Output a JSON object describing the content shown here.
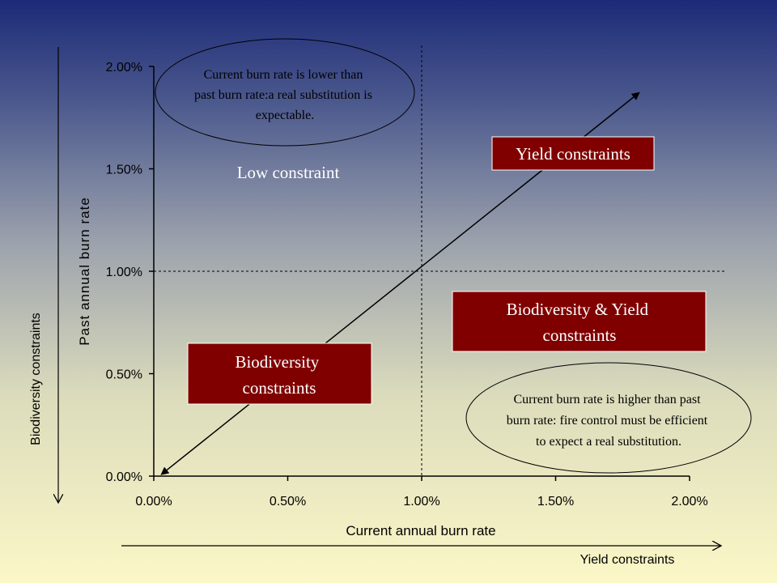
{
  "chart_data": {
    "type": "line",
    "xlabel": "Current annual burn rate",
    "ylabel": "Past annual burn rate",
    "xlim": [
      0,
      0.02
    ],
    "ylim": [
      0,
      0.02
    ],
    "x_ticks": [
      "0.00%",
      "0.50%",
      "1.00%",
      "1.50%",
      "2.00%"
    ],
    "y_ticks": [
      "0.00%",
      "0.50%",
      "1.00%",
      "1.50%",
      "2.00%"
    ],
    "reference_lines": {
      "x": 0.01,
      "y": 0.01
    },
    "diagonal_arrow": {
      "x": [
        0.0003,
        0.0181
      ],
      "y": [
        0.0001,
        0.0187
      ]
    },
    "annotations": {
      "zone_low": "Low constraint",
      "zone_yield": "Yield constraints",
      "zone_both_line1": "Biodiversity & Yield",
      "zone_both_line2": "constraints",
      "zone_bio_line1": "Biodiversity",
      "zone_bio_line2": "constraints",
      "note_top": [
        "Current burn rate is lower than",
        "past burn rate:a real substitution is",
        "expectable."
      ],
      "note_bottom": [
        "Current burn rate is higher than past",
        "burn rate: fire control must be efficient",
        "to expect a real substitution."
      ]
    },
    "outer_axes": {
      "vertical_label": "Biodiversity constraints",
      "horizontal_label": "Yield constraints"
    },
    "colors": {
      "zone_box": "#800000",
      "zone_text": "#ffffff",
      "lines": "#000000"
    }
  }
}
